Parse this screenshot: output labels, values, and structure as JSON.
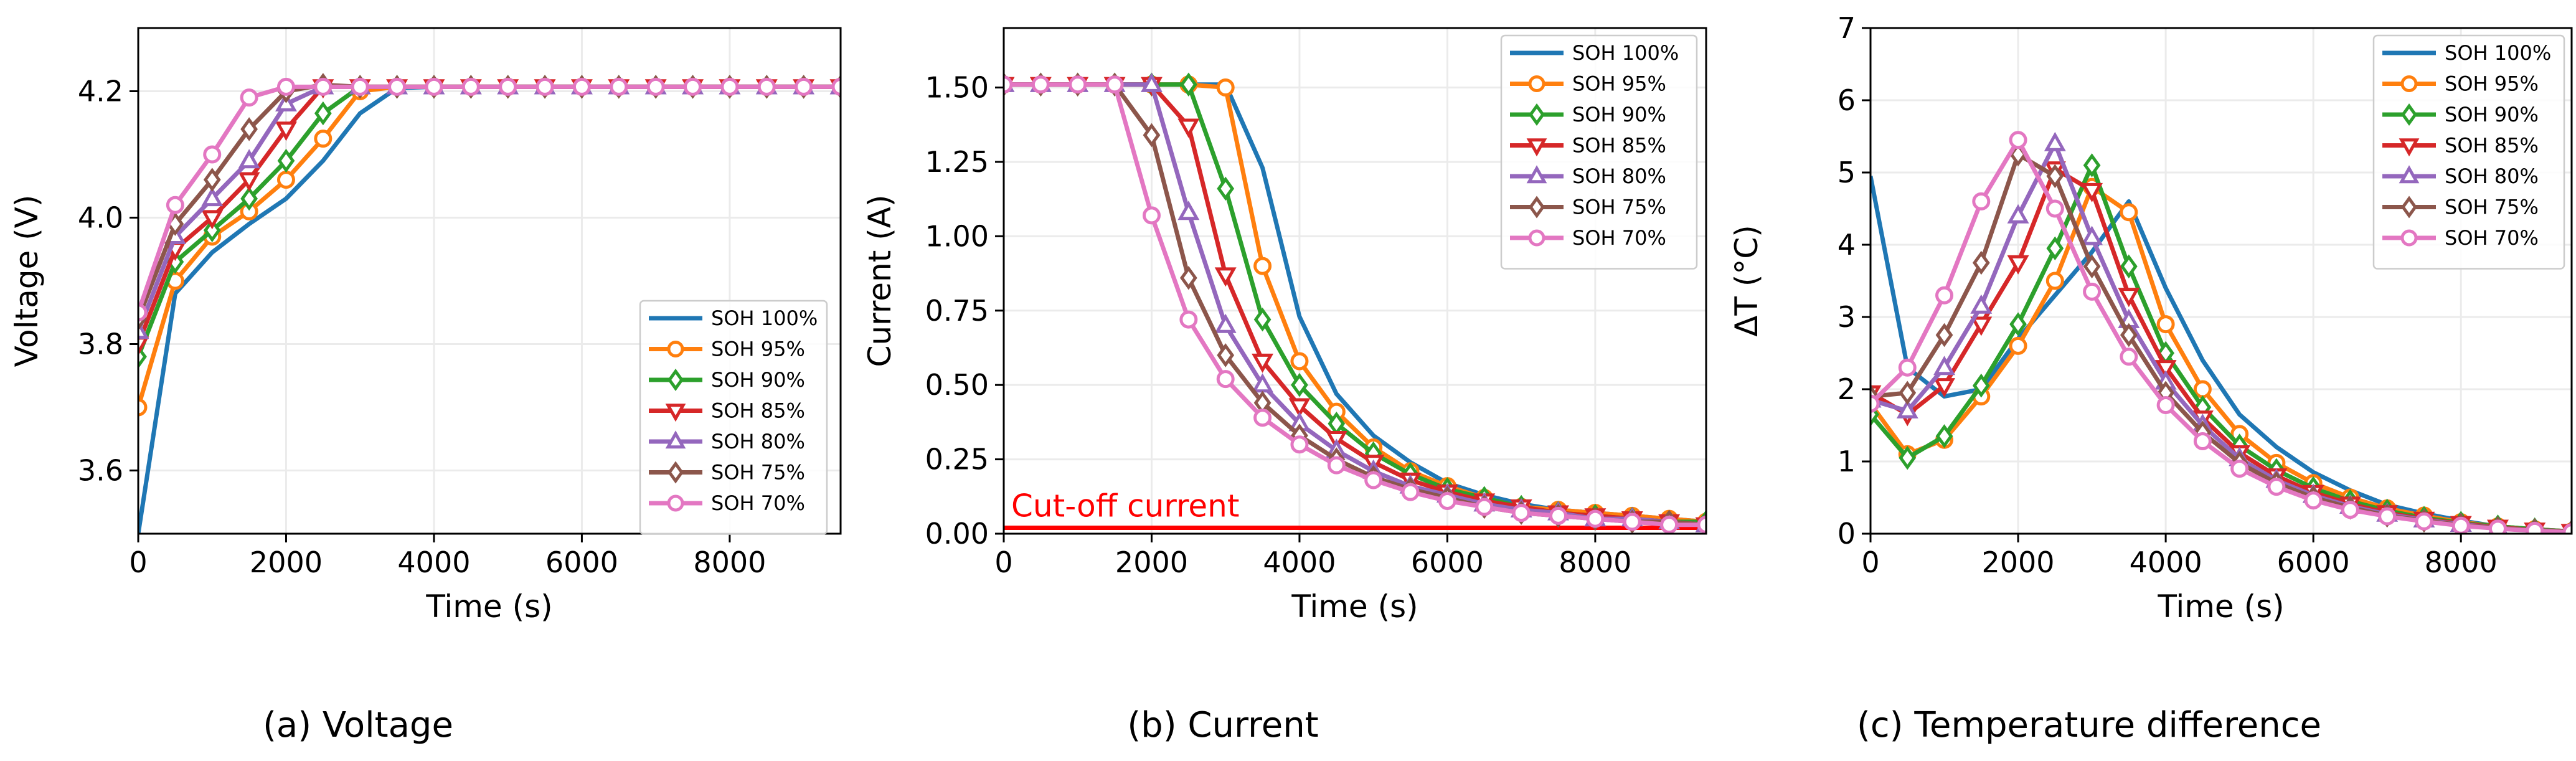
{
  "figure": {
    "captions": [
      "(a) Voltage",
      "(b) Current",
      "(c) Temperature difference"
    ]
  },
  "colors": {
    "SOH 100%": "#1f77b4",
    "SOH 95%": "#ff7f0e",
    "SOH 90%": "#2ca02c",
    "SOH 85%": "#d62728",
    "SOH 80%": "#9467bd",
    "SOH 75%": "#8c564b",
    "SOH 70%": "#e377c2",
    "cutoff": "#ff0000",
    "grid": "#ebebeb"
  },
  "markers": {
    "SOH 100%": "none",
    "SOH 95%": "circle",
    "SOH 90%": "diamond",
    "SOH 85%": "triangle-down",
    "SOH 80%": "triangle-up",
    "SOH 75%": "diamond",
    "SOH 70%": "circle"
  },
  "chart_data": [
    {
      "type": "line",
      "id": "voltage",
      "title": "",
      "xlabel": "Time (s)",
      "ylabel": "Voltage (V)",
      "xlim": [
        0,
        9500
      ],
      "ylim": [
        3.5,
        4.3
      ],
      "xticks": [
        0,
        2000,
        4000,
        6000,
        8000
      ],
      "xtick_labels": [
        "0",
        "2000",
        "4000",
        "6000",
        "8000"
      ],
      "yticks": [
        3.6,
        3.8,
        4.0,
        4.2
      ],
      "ytick_labels": [
        "3.6",
        "3.8",
        "4.0",
        "4.2"
      ],
      "grid": true,
      "legend_position": "lower-right",
      "x": [
        0,
        500,
        1000,
        1500,
        2000,
        2500,
        3000,
        3500,
        4000,
        4500,
        5000,
        5500,
        6000,
        6500,
        7000,
        7500,
        8000,
        8500,
        9000,
        9500
      ],
      "series": [
        {
          "name": "SOH 100%",
          "values": [
            3.5,
            3.88,
            3.945,
            3.99,
            4.03,
            4.09,
            4.165,
            4.205,
            4.207,
            4.207,
            4.207,
            4.207,
            4.207,
            4.207,
            4.207,
            4.207,
            4.207,
            4.207,
            4.207,
            4.207
          ]
        },
        {
          "name": "SOH 95%",
          "values": [
            3.7,
            3.9,
            3.97,
            4.01,
            4.06,
            4.125,
            4.2,
            4.207,
            4.207,
            4.207,
            4.207,
            4.207,
            4.207,
            4.207,
            4.207,
            4.207,
            4.207,
            4.207,
            4.207,
            4.207
          ]
        },
        {
          "name": "SOH 90%",
          "values": [
            3.78,
            3.93,
            3.98,
            4.03,
            4.09,
            4.165,
            4.207,
            4.207,
            4.207,
            4.207,
            4.207,
            4.207,
            4.207,
            4.207,
            4.207,
            4.207,
            4.207,
            4.207,
            4.207,
            4.207
          ]
        },
        {
          "name": "SOH 85%",
          "values": [
            3.8,
            3.95,
            4.0,
            4.06,
            4.14,
            4.207,
            4.207,
            4.207,
            4.207,
            4.207,
            4.207,
            4.207,
            4.207,
            4.207,
            4.207,
            4.207,
            4.207,
            4.207,
            4.207,
            4.207
          ]
        },
        {
          "name": "SOH 80%",
          "values": [
            3.82,
            3.97,
            4.03,
            4.09,
            4.18,
            4.207,
            4.207,
            4.207,
            4.207,
            4.207,
            4.207,
            4.207,
            4.207,
            4.207,
            4.207,
            4.207,
            4.207,
            4.207,
            4.207,
            4.207
          ]
        },
        {
          "name": "SOH 75%",
          "values": [
            3.84,
            3.99,
            4.06,
            4.14,
            4.2,
            4.21,
            4.207,
            4.207,
            4.207,
            4.207,
            4.207,
            4.207,
            4.207,
            4.207,
            4.207,
            4.207,
            4.207,
            4.207,
            4.207,
            4.207
          ]
        },
        {
          "name": "SOH 70%",
          "values": [
            3.85,
            4.02,
            4.1,
            4.19,
            4.207,
            4.207,
            4.207,
            4.207,
            4.207,
            4.207,
            4.207,
            4.207,
            4.207,
            4.207,
            4.207,
            4.207,
            4.207,
            4.207,
            4.207,
            4.207
          ]
        }
      ]
    },
    {
      "type": "line",
      "id": "current",
      "title": "",
      "xlabel": "Time (s)",
      "ylabel": "Current (A)",
      "xlim": [
        0,
        9500
      ],
      "ylim": [
        0,
        1.7
      ],
      "xticks": [
        0,
        2000,
        4000,
        6000,
        8000
      ],
      "xtick_labels": [
        "0",
        "2000",
        "4000",
        "6000",
        "8000"
      ],
      "yticks": [
        0,
        0.25,
        0.5,
        0.75,
        1.0,
        1.25,
        1.5
      ],
      "ytick_labels": [
        "0.00",
        "0.25",
        "0.50",
        "0.75",
        "1.00",
        "1.25",
        "1.50"
      ],
      "grid": true,
      "legend_position": "upper-right",
      "annotation": {
        "text": "Cut-off current",
        "y": 0.02
      },
      "x": [
        0,
        500,
        1000,
        1500,
        2000,
        2500,
        3000,
        3500,
        4000,
        4500,
        5000,
        5500,
        6000,
        6500,
        7000,
        7500,
        8000,
        8500,
        9000,
        9500
      ],
      "series": [
        {
          "name": "SOH 100%",
          "values": [
            1.51,
            1.51,
            1.51,
            1.51,
            1.51,
            1.51,
            1.51,
            1.23,
            0.73,
            0.47,
            0.33,
            0.24,
            0.17,
            0.13,
            0.1,
            0.08,
            0.07,
            0.06,
            0.05,
            0.04
          ]
        },
        {
          "name": "SOH 95%",
          "values": [
            1.51,
            1.51,
            1.51,
            1.51,
            1.51,
            1.51,
            1.5,
            0.9,
            0.58,
            0.41,
            0.29,
            0.21,
            0.16,
            0.12,
            0.09,
            0.08,
            0.07,
            0.06,
            0.05,
            0.04
          ]
        },
        {
          "name": "SOH 90%",
          "values": [
            1.51,
            1.51,
            1.51,
            1.51,
            1.51,
            1.51,
            1.16,
            0.72,
            0.5,
            0.37,
            0.27,
            0.2,
            0.15,
            0.12,
            0.09,
            0.07,
            0.06,
            0.05,
            0.04,
            0.04
          ]
        },
        {
          "name": "SOH 85%",
          "values": [
            1.51,
            1.51,
            1.51,
            1.51,
            1.51,
            1.37,
            0.87,
            0.58,
            0.43,
            0.32,
            0.24,
            0.18,
            0.14,
            0.11,
            0.09,
            0.07,
            0.06,
            0.05,
            0.04,
            0.03
          ]
        },
        {
          "name": "SOH 80%",
          "values": [
            1.51,
            1.51,
            1.51,
            1.51,
            1.51,
            1.08,
            0.7,
            0.5,
            0.37,
            0.28,
            0.21,
            0.16,
            0.13,
            0.1,
            0.08,
            0.07,
            0.05,
            0.05,
            0.04,
            0.03
          ]
        },
        {
          "name": "SOH 75%",
          "values": [
            1.51,
            1.51,
            1.51,
            1.51,
            1.34,
            0.86,
            0.6,
            0.44,
            0.33,
            0.25,
            0.19,
            0.15,
            0.12,
            0.09,
            0.07,
            0.06,
            0.05,
            0.04,
            0.04,
            0.03
          ]
        },
        {
          "name": "SOH 70%",
          "values": [
            1.51,
            1.51,
            1.51,
            1.51,
            1.07,
            0.72,
            0.52,
            0.39,
            0.3,
            0.23,
            0.18,
            0.14,
            0.11,
            0.09,
            0.07,
            0.06,
            0.05,
            0.04,
            0.03,
            0.03
          ]
        }
      ]
    },
    {
      "type": "line",
      "id": "temperature",
      "title": "",
      "xlabel": "Time (s)",
      "ylabel": "ΔT (°C)",
      "xlim": [
        0,
        9500
      ],
      "ylim": [
        0,
        7
      ],
      "xticks": [
        0,
        2000,
        4000,
        6000,
        8000
      ],
      "xtick_labels": [
        "0",
        "2000",
        "4000",
        "6000",
        "8000"
      ],
      "yticks": [
        0,
        1,
        2,
        3,
        4,
        5,
        6,
        7
      ],
      "ytick_labels": [
        "0",
        "1",
        "2",
        "3",
        "4",
        "5",
        "6",
        "7"
      ],
      "grid": true,
      "legend_position": "upper-right",
      "x": [
        0,
        500,
        1000,
        1500,
        2000,
        2500,
        3000,
        3500,
        4000,
        4500,
        5000,
        5500,
        6000,
        6500,
        7000,
        7500,
        8000,
        8500,
        9000,
        9500
      ],
      "series": [
        {
          "name": "SOH 100%",
          "values": [
            4.95,
            2.3,
            1.9,
            2.0,
            2.7,
            3.3,
            3.9,
            4.6,
            3.4,
            2.4,
            1.65,
            1.2,
            0.85,
            0.6,
            0.4,
            0.28,
            0.18,
            0.1,
            0.06,
            0.03
          ]
        },
        {
          "name": "SOH 95%",
          "values": [
            1.8,
            1.1,
            1.3,
            1.9,
            2.6,
            3.5,
            4.8,
            4.45,
            2.9,
            2.0,
            1.38,
            0.98,
            0.7,
            0.5,
            0.35,
            0.25,
            0.16,
            0.1,
            0.06,
            0.03
          ]
        },
        {
          "name": "SOH 90%",
          "values": [
            1.65,
            1.05,
            1.35,
            2.05,
            2.9,
            3.95,
            5.1,
            3.7,
            2.5,
            1.75,
            1.22,
            0.88,
            0.63,
            0.45,
            0.32,
            0.22,
            0.15,
            0.1,
            0.06,
            0.03
          ]
        },
        {
          "name": "SOH 85%",
          "values": [
            1.95,
            1.65,
            2.05,
            2.9,
            3.75,
            5.05,
            4.75,
            3.3,
            2.3,
            1.6,
            1.12,
            0.8,
            0.57,
            0.41,
            0.29,
            0.2,
            0.14,
            0.09,
            0.05,
            0.03
          ]
        },
        {
          "name": "SOH 80%",
          "values": [
            1.85,
            1.7,
            2.3,
            3.15,
            4.4,
            5.4,
            4.1,
            2.95,
            2.1,
            1.5,
            1.04,
            0.74,
            0.53,
            0.38,
            0.27,
            0.19,
            0.13,
            0.08,
            0.05,
            0.03
          ]
        },
        {
          "name": "SOH 75%",
          "values": [
            1.9,
            1.95,
            2.75,
            3.75,
            5.25,
            4.95,
            3.7,
            2.75,
            1.95,
            1.4,
            0.98,
            0.7,
            0.5,
            0.36,
            0.25,
            0.18,
            0.12,
            0.08,
            0.05,
            0.03
          ]
        },
        {
          "name": "SOH 70%",
          "values": [
            1.8,
            2.3,
            3.3,
            4.6,
            5.45,
            4.5,
            3.35,
            2.45,
            1.78,
            1.28,
            0.9,
            0.65,
            0.46,
            0.33,
            0.24,
            0.17,
            0.11,
            0.07,
            0.04,
            0.02
          ]
        }
      ]
    }
  ]
}
